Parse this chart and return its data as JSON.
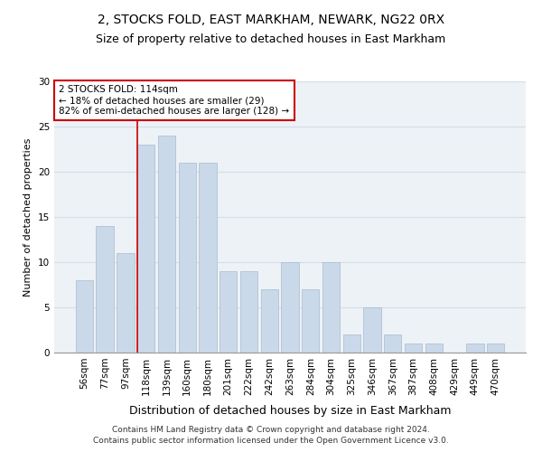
{
  "title1": "2, STOCKS FOLD, EAST MARKHAM, NEWARK, NG22 0RX",
  "title2": "Size of property relative to detached houses in East Markham",
  "xlabel": "Distribution of detached houses by size in East Markham",
  "ylabel": "Number of detached properties",
  "categories": [
    "56sqm",
    "77sqm",
    "97sqm",
    "118sqm",
    "139sqm",
    "160sqm",
    "180sqm",
    "201sqm",
    "222sqm",
    "242sqm",
    "263sqm",
    "284sqm",
    "304sqm",
    "325sqm",
    "346sqm",
    "367sqm",
    "387sqm",
    "408sqm",
    "429sqm",
    "449sqm",
    "470sqm"
  ],
  "values": [
    8,
    14,
    11,
    23,
    24,
    21,
    21,
    9,
    9,
    7,
    10,
    7,
    10,
    2,
    5,
    2,
    1,
    1,
    0,
    1,
    1
  ],
  "bar_color": "#c9d9ea",
  "bar_edge_color": "#aabbcc",
  "grid_color": "#d5dde5",
  "annotation_text_line1": "2 STOCKS FOLD: 114sqm",
  "annotation_text_line2": "← 18% of detached houses are smaller (29)",
  "annotation_text_line3": "82% of semi-detached houses are larger (128) →",
  "annotation_box_facecolor": "#ffffff",
  "annotation_border_color": "#cc0000",
  "red_line_color": "#cc0000",
  "footnote1": "Contains HM Land Registry data © Crown copyright and database right 2024.",
  "footnote2": "Contains public sector information licensed under the Open Government Licence v3.0.",
  "ylim": [
    0,
    30
  ],
  "yticks": [
    0,
    5,
    10,
    15,
    20,
    25,
    30
  ],
  "plot_bg_color": "#edf2f7",
  "fig_bg_color": "#ffffff",
  "title1_fontsize": 10,
  "title2_fontsize": 9,
  "ylabel_fontsize": 8,
  "xlabel_fontsize": 9,
  "tick_fontsize": 7.5,
  "annot_fontsize": 7.5,
  "footnote_fontsize": 6.5
}
